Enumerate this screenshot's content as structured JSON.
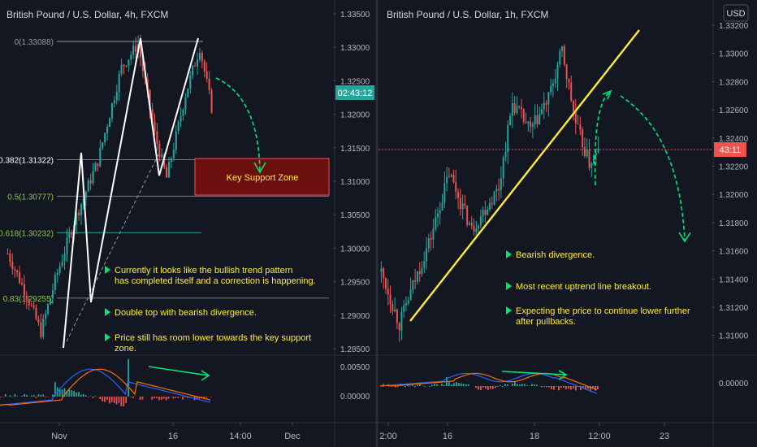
{
  "left_panel": {
    "title": "British Pound / U.S. Dollar, 4h, FXCM",
    "price_axis": [
      "1.33500",
      "1.33000",
      "1.32500",
      "1.32000",
      "1.31500",
      "1.31000",
      "1.30500",
      "1.30000",
      "1.29500",
      "1.29000",
      "1.28500"
    ],
    "countdown": "02:43:12",
    "time_axis": [
      "Nov",
      "16",
      "14:00",
      "Dec"
    ],
    "fib_levels": [
      {
        "label": "0(1.33088)",
        "price": 1.33088
      },
      {
        "label": "0.382(1.31322)",
        "price": 1.31322
      },
      {
        "label": "0.5(1.30777)",
        "price": 1.30777
      },
      {
        "label": "0.618(1.30232)",
        "price": 1.30232
      },
      {
        "label": "0.83(1.29255)",
        "price": 1.29255
      }
    ],
    "support_zone": {
      "label": "Key Support Zone",
      "top": 1.3132,
      "bottom": 1.3078
    },
    "notes": [
      [
        "Currently it looks like the bullish trend pattern",
        "has completed itself and a correction is happening."
      ],
      [
        "Double top with bearish divergence."
      ],
      [
        "Price still has room lower towards the key support",
        "zone."
      ]
    ],
    "macd_axis": [
      "0.00500",
      "0.00000"
    ]
  },
  "right_panel": {
    "title": "British Pound / U.S. Dollar, 1h, FXCM",
    "currency_button": "USD",
    "price_axis": [
      "1.33200",
      "1.33000",
      "1.32800",
      "1.32600",
      "1.32400",
      "1.32200",
      "1.32000",
      "1.31800",
      "1.31600",
      "1.31400",
      "1.31200",
      "1.31000"
    ],
    "countdown": "43:11",
    "time_axis": [
      "2:00",
      "16",
      "18",
      "12:00",
      "23"
    ],
    "notes": [
      [
        "Bearish divergence."
      ],
      [
        "Most recent uptrend line breakout."
      ],
      [
        "Expecting the price to continue lower further",
        "after pullbacks."
      ]
    ],
    "macd_axis": [
      "0.00000"
    ]
  },
  "colors": {
    "background": "#131722",
    "up": "#26a69a",
    "down": "#ef5350",
    "fib": "#787b86",
    "support_fill": "#6b0f0f",
    "trendline": "#ffeb3b",
    "arrow": "#00e676",
    "note_text": "#ffeb3b",
    "macd_line": "#2962ff",
    "signal_line": "#ff6d00",
    "countdown_left": "#26a69a",
    "countdown_right": "#ef5350"
  },
  "chart_data": [
    {
      "type": "candlestick",
      "title": "British Pound / U.S. Dollar, 4h, FXCM",
      "ylim": [
        1.284,
        1.336
      ],
      "key_points": [
        {
          "t": 0,
          "close": 1.2992
        },
        {
          "t": 8,
          "close": 1.293
        },
        {
          "t": 14,
          "close": 1.2875
        },
        {
          "t": 20,
          "close": 1.2952
        },
        {
          "t": 28,
          "close": 1.304
        },
        {
          "t": 38,
          "close": 1.313
        },
        {
          "t": 48,
          "close": 1.327
        },
        {
          "t": 55,
          "close": 1.3305
        },
        {
          "t": 62,
          "close": 1.317
        },
        {
          "t": 67,
          "close": 1.3105
        },
        {
          "t": 75,
          "close": 1.323
        },
        {
          "t": 81,
          "close": 1.33
        },
        {
          "t": 86,
          "close": 1.321
        }
      ]
    },
    {
      "type": "candlestick",
      "title": "British Pound / U.S. Dollar, 1h, FXCM",
      "ylim": [
        1.309,
        1.3325
      ],
      "key_points": [
        {
          "t": 0,
          "close": 1.3145
        },
        {
          "t": 8,
          "close": 1.3108
        },
        {
          "t": 14,
          "close": 1.3135
        },
        {
          "t": 22,
          "close": 1.317
        },
        {
          "t": 30,
          "close": 1.3215
        },
        {
          "t": 40,
          "close": 1.3175
        },
        {
          "t": 52,
          "close": 1.3205
        },
        {
          "t": 58,
          "close": 1.3265
        },
        {
          "t": 66,
          "close": 1.3245
        },
        {
          "t": 74,
          "close": 1.3268
        },
        {
          "t": 80,
          "close": 1.3302
        },
        {
          "t": 86,
          "close": 1.325
        },
        {
          "t": 92,
          "close": 1.3222
        },
        {
          "t": 96,
          "close": 1.323
        }
      ]
    }
  ]
}
